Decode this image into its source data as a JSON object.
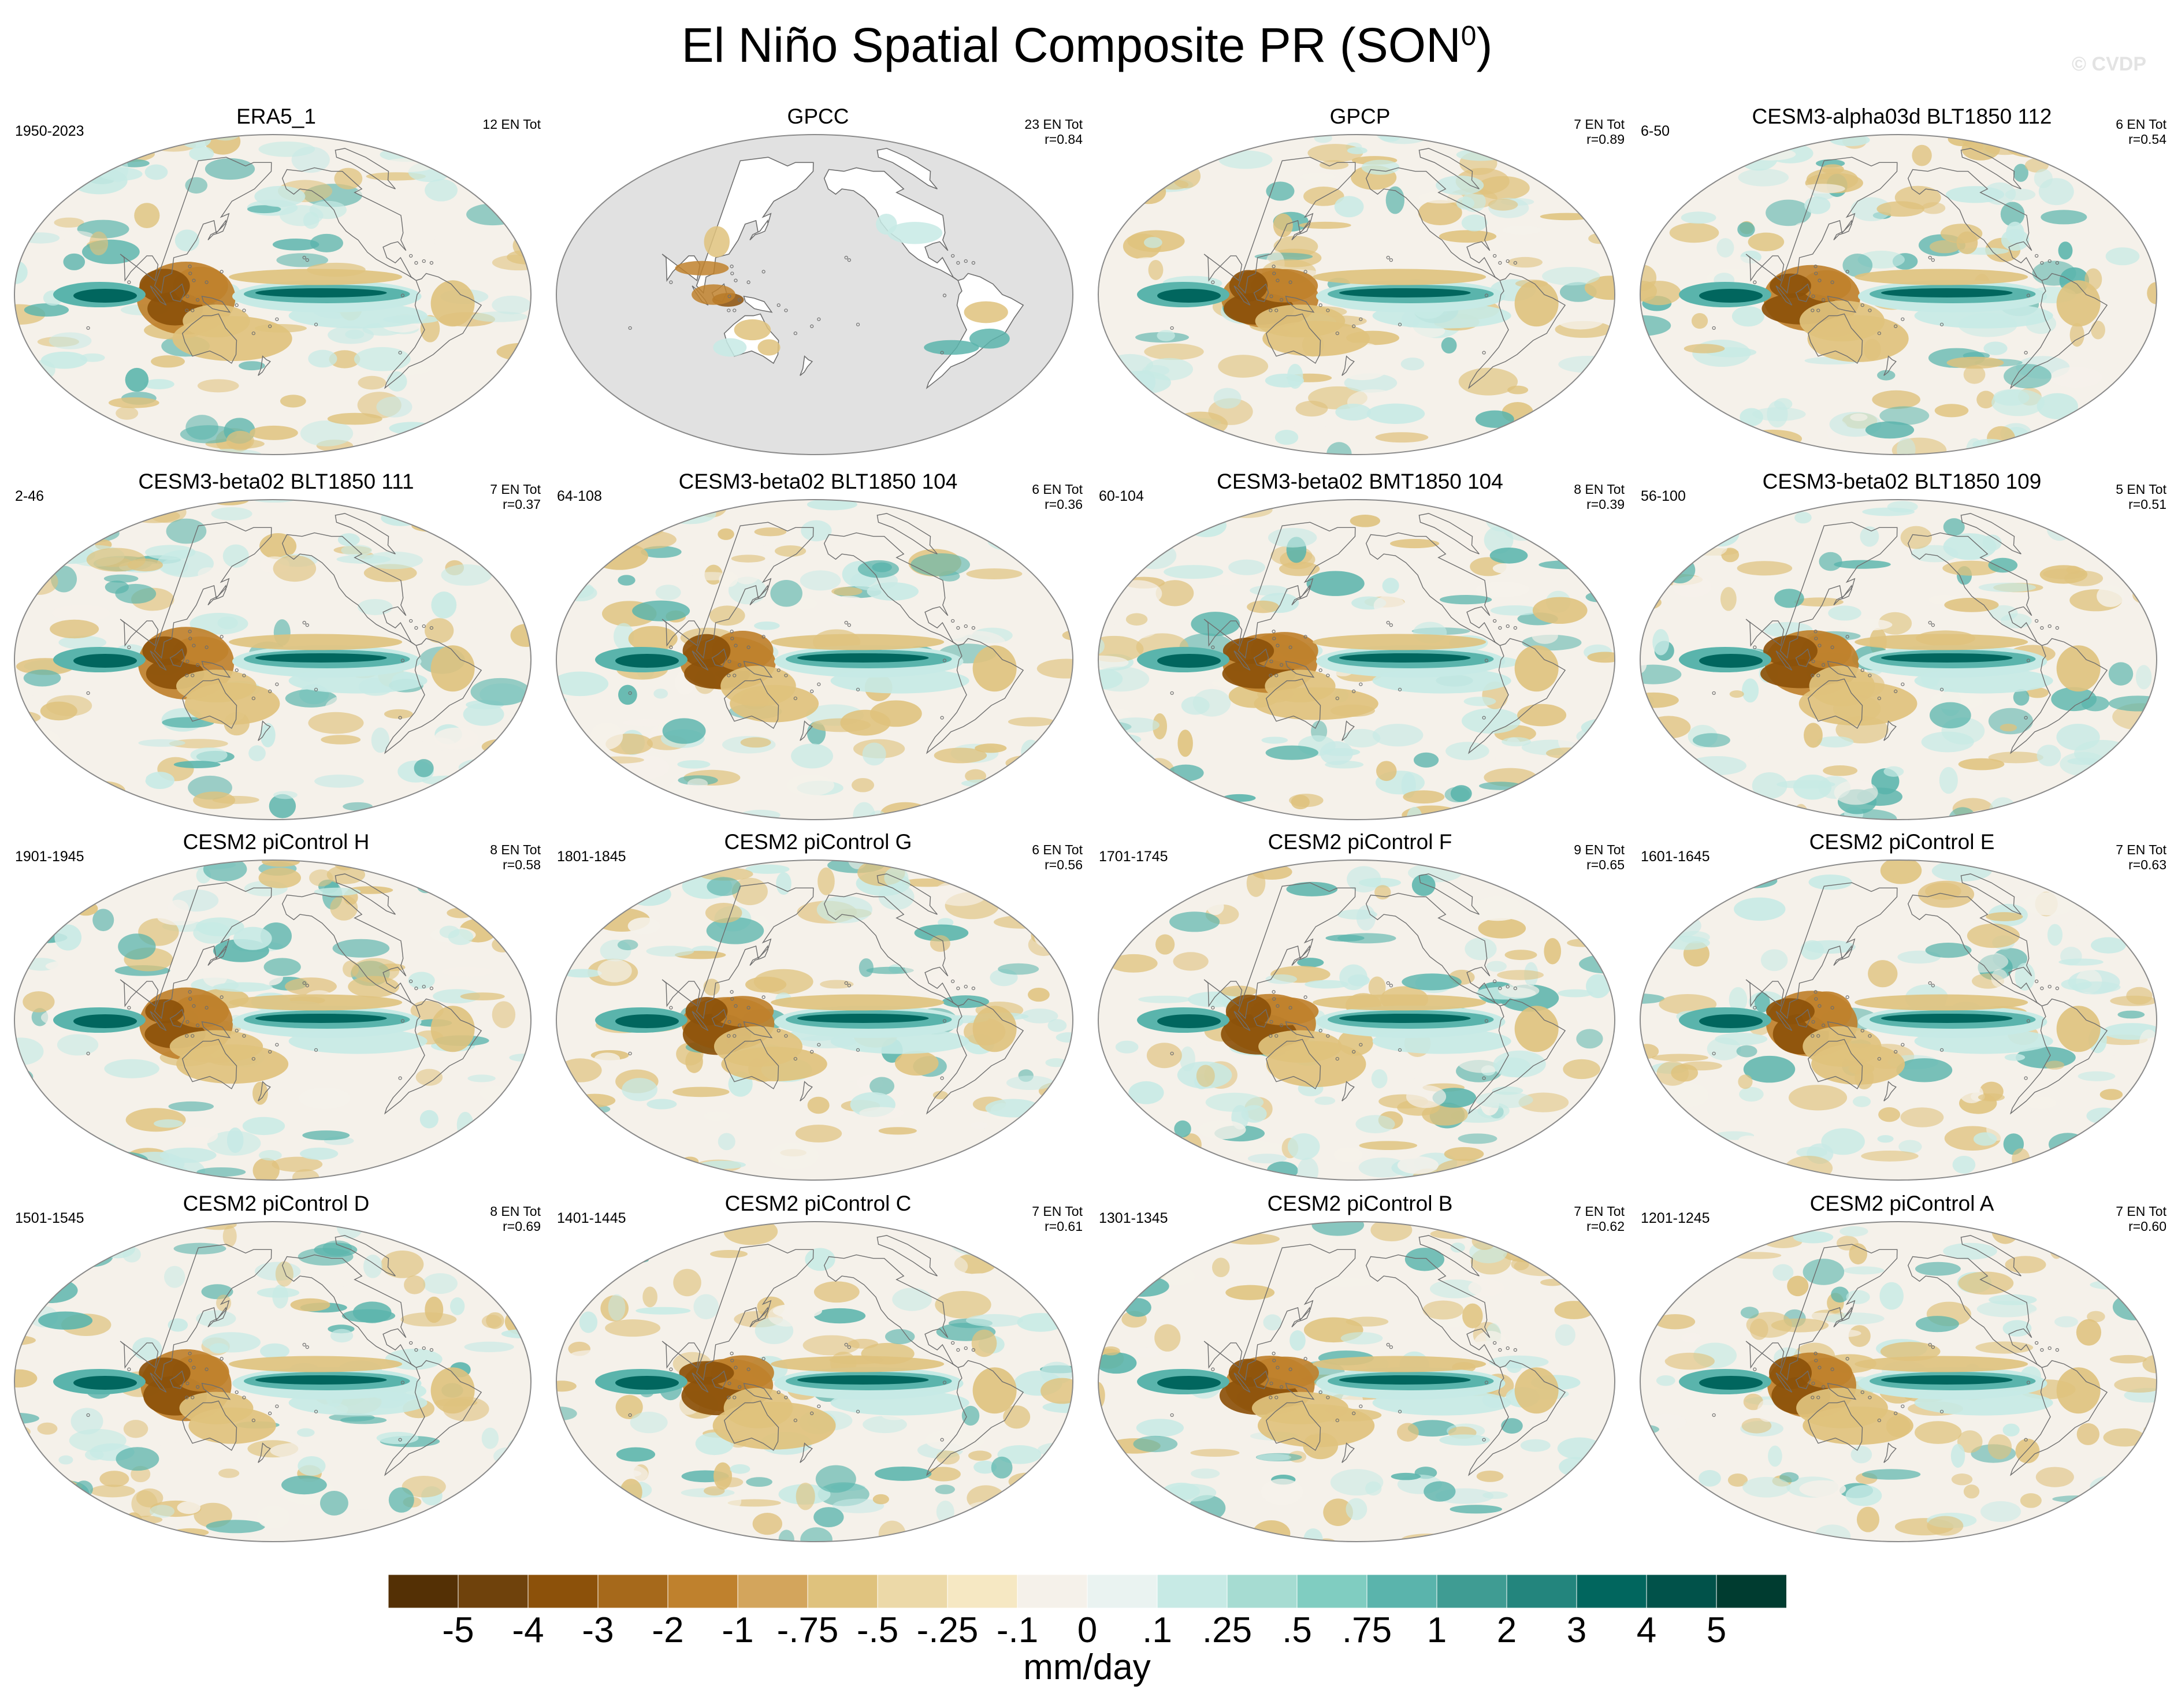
{
  "figure": {
    "title": "El Niño Spatial Composite PR (SON",
    "title_sup": "0",
    "title_close": ")",
    "watermark": "© CVDP"
  },
  "panels": [
    {
      "title": "ERA5_1",
      "years": "1950-2023",
      "stats": [
        "12 EN Tot"
      ],
      "pattern": "full"
    },
    {
      "title": "GPCC",
      "years": "",
      "stats": [
        "23 EN Tot",
        "r=0.84"
      ],
      "pattern": "land"
    },
    {
      "title": "GPCP",
      "years": "",
      "stats": [
        "7 EN Tot",
        "r=0.89"
      ],
      "pattern": "full"
    },
    {
      "title": "CESM3-alpha03d BLT1850 112",
      "years": "6-50",
      "stats": [
        "6 EN Tot",
        "r=0.54"
      ],
      "pattern": "full"
    },
    {
      "title": "CESM3-beta02 BLT1850 111",
      "years": "2-46",
      "stats": [
        "7 EN Tot",
        "r=0.37"
      ],
      "pattern": "full"
    },
    {
      "title": "CESM3-beta02 BLT1850 104",
      "years": "64-108",
      "stats": [
        "6 EN Tot",
        "r=0.36"
      ],
      "pattern": "full"
    },
    {
      "title": "CESM3-beta02 BMT1850 104",
      "years": "60-104",
      "stats": [
        "8 EN Tot",
        "r=0.39"
      ],
      "pattern": "full"
    },
    {
      "title": "CESM3-beta02 BLT1850 109",
      "years": "56-100",
      "stats": [
        "5 EN Tot",
        "r=0.51"
      ],
      "pattern": "full"
    },
    {
      "title": "CESM2 piControl H",
      "years": "1901-1945",
      "stats": [
        "8 EN Tot",
        "r=0.58"
      ],
      "pattern": "full"
    },
    {
      "title": "CESM2 piControl G",
      "years": "1801-1845",
      "stats": [
        "6 EN Tot",
        "r=0.56"
      ],
      "pattern": "full"
    },
    {
      "title": "CESM2 piControl F",
      "years": "1701-1745",
      "stats": [
        "9 EN Tot",
        "r=0.65"
      ],
      "pattern": "full"
    },
    {
      "title": "CESM2 piControl E",
      "years": "1601-1645",
      "stats": [
        "7 EN Tot",
        "r=0.63"
      ],
      "pattern": "full"
    },
    {
      "title": "CESM2 piControl D",
      "years": "1501-1545",
      "stats": [
        "8 EN Tot",
        "r=0.69"
      ],
      "pattern": "full"
    },
    {
      "title": "CESM2 piControl C",
      "years": "1401-1445",
      "stats": [
        "7 EN Tot",
        "r=0.61"
      ],
      "pattern": "full"
    },
    {
      "title": "CESM2 piControl B",
      "years": "1301-1345",
      "stats": [
        "7 EN Tot",
        "r=0.62"
      ],
      "pattern": "full"
    },
    {
      "title": "CESM2 piControl A",
      "years": "1201-1245",
      "stats": [
        "7 EN Tot",
        "r=0.60"
      ],
      "pattern": "full"
    }
  ],
  "colorbar": {
    "labels": [
      "-5",
      "-4",
      "-3",
      "-2",
      "-1",
      "-.75",
      "-.5",
      "-.25",
      "-.1",
      "0",
      ".1",
      ".25",
      ".5",
      ".75",
      "1",
      "2",
      "3",
      "4",
      "5"
    ],
    "colors": [
      "#543005",
      "#6f420c",
      "#8c510a",
      "#a6691b",
      "#bf812d",
      "#d3a55c",
      "#dfc27d",
      "#ecd9a8",
      "#f6e8c3",
      "#f5f1ea",
      "#eaf3f1",
      "#c7eae5",
      "#a6dcd2",
      "#80cdc1",
      "#5ab4ac",
      "#3f9c93",
      "#23857d",
      "#01665e",
      "#01524a",
      "#003c30"
    ],
    "units": "mm/day"
  },
  "palette": {
    "dry_strong": "#8c510a",
    "dry_mid": "#bf812d",
    "dry_light": "#dfc27d",
    "neutral": "#f5f1ea",
    "wet_light": "#c7eae5",
    "wet_mid": "#5ab4ac",
    "wet_strong": "#01665e",
    "gpcc_missing": "#e1e1e1",
    "coast": "#6e6e6e"
  }
}
